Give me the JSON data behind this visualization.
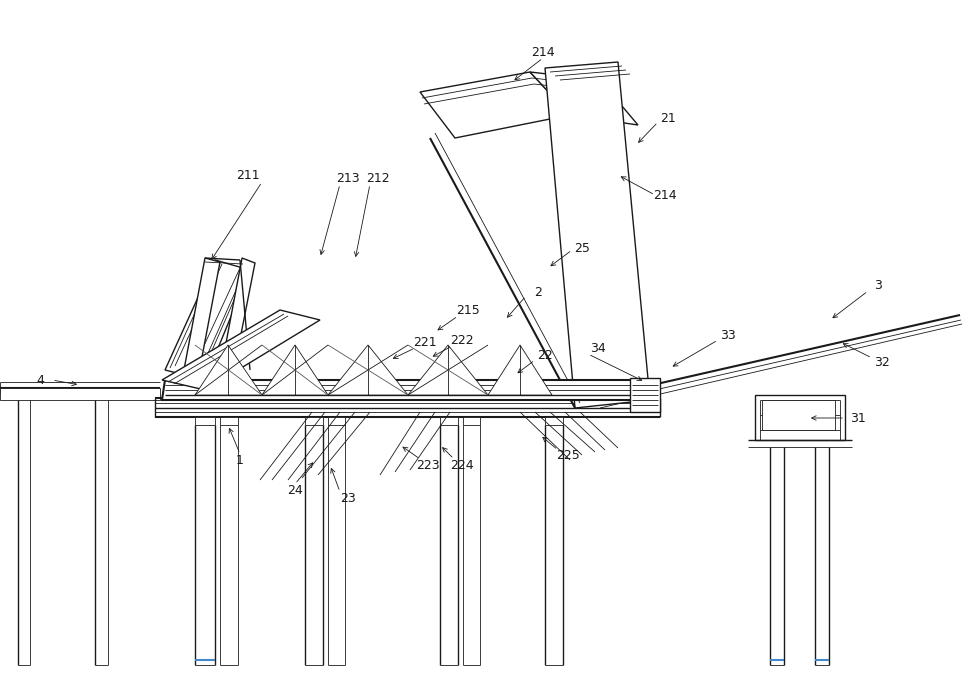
{
  "bg_color": "#ffffff",
  "lc": "#1a1a1a",
  "lc2": "#555555",
  "thin": 0.6,
  "med": 1.0,
  "thick": 1.5,
  "fs": 9
}
